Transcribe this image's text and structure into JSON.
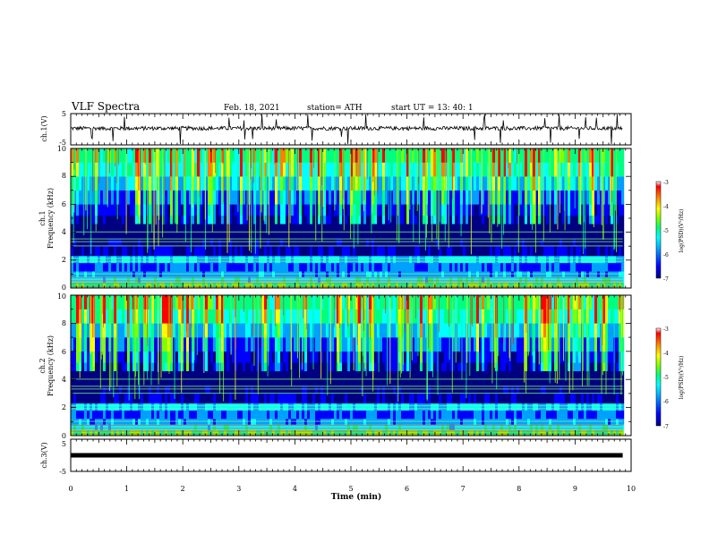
{
  "header": {
    "title": "VLF Spectra",
    "date": "Feb. 18, 2021",
    "station": "station= ATH",
    "start": "start  UT  =   13: 40: 1"
  },
  "colors": {
    "colormap": [
      "#000080",
      "#0000ff",
      "#00a0ff",
      "#00ffff",
      "#00ff80",
      "#80ff00",
      "#ffff00",
      "#ff8000",
      "#ff0000",
      "#ffffff"
    ],
    "trace": "#000000"
  },
  "chart_data": [
    {
      "type": "line",
      "name": "ch1-waveform",
      "ylabel": "ch.1(V)",
      "ylim": [
        -5,
        5
      ],
      "yticks": [
        "5",
        "-5"
      ],
      "xlim": [
        0,
        10
      ],
      "baseline_value": 0.3,
      "amplitude": 2.5
    },
    {
      "type": "heatmap",
      "name": "ch1-spectrogram",
      "ylabel_line1": "ch.1",
      "ylabel_line2": "Frequency (kHz)",
      "ylim": [
        0,
        10
      ],
      "yticks": [
        "0",
        "2",
        "4",
        "6",
        "8",
        "10"
      ],
      "xlim": [
        0,
        9.85
      ],
      "colorbar": {
        "label": "log(PSD)(V²/Hz)",
        "range": [
          -7,
          -3
        ],
        "ticks": [
          "-3",
          "-4",
          "-5",
          "-6",
          "-7"
        ]
      }
    },
    {
      "type": "heatmap",
      "name": "ch2-spectrogram",
      "ylabel_line1": "ch.2",
      "ylabel_line2": "Frequency (kHz)",
      "ylim": [
        0,
        10
      ],
      "yticks": [
        "0",
        "2",
        "4",
        "6",
        "8",
        "10"
      ],
      "xlim": [
        0,
        9.85
      ],
      "colorbar": {
        "label": "log(PSD)(V²/Hz)",
        "range": [
          -7,
          -3
        ],
        "ticks": [
          "-3",
          "-4",
          "-5",
          "-6",
          "-7"
        ]
      }
    },
    {
      "type": "line",
      "name": "ch3-waveform",
      "ylabel": "ch.3(V)",
      "ylim": [
        -5,
        5
      ],
      "yticks": [
        "5",
        "-5"
      ],
      "xlim": [
        0,
        10
      ],
      "baseline_value": 0,
      "amplitude": 0.3
    }
  ],
  "xaxis": {
    "label": "Time (min)",
    "ticks": [
      "0",
      "1",
      "2",
      "3",
      "4",
      "5",
      "6",
      "7",
      "8",
      "9",
      "10"
    ],
    "range": [
      0,
      10
    ]
  }
}
